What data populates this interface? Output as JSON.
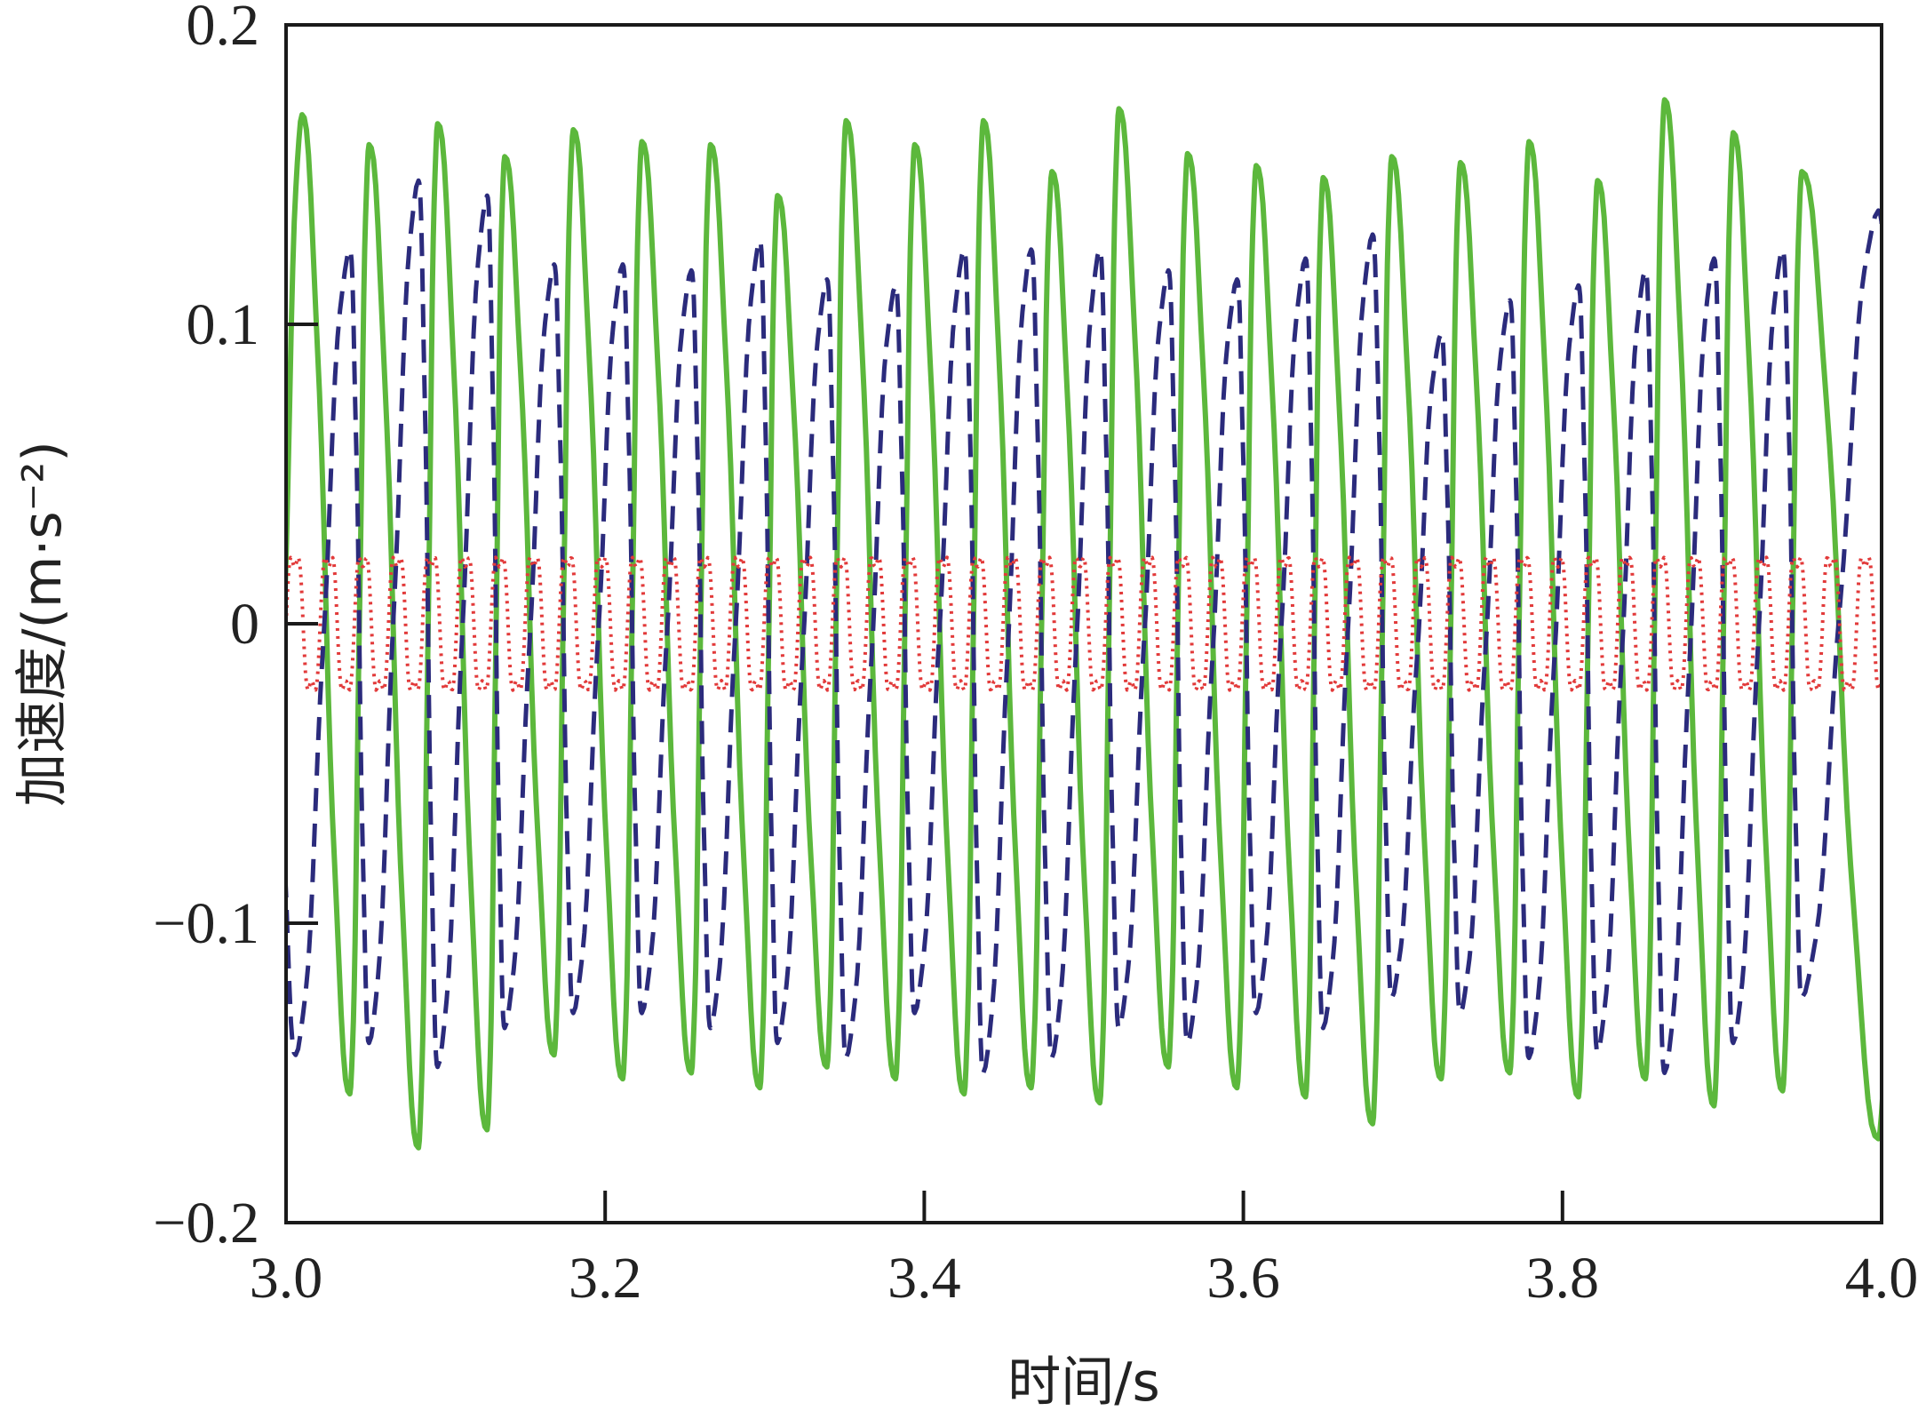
{
  "chart_data": {
    "type": "line",
    "title": "",
    "xlabel": "时间/s",
    "ylabel": "加速度/(m·s⁻²)",
    "xlim": [
      3.0,
      4.0
    ],
    "ylim": [
      -0.2,
      0.2
    ],
    "x_ticks": [
      "3.0",
      "3.2",
      "3.4",
      "3.6",
      "3.8",
      "4.0"
    ],
    "x_tick_values": [
      3.0,
      3.2,
      3.4,
      3.6,
      3.8,
      4.0
    ],
    "y_ticks": [
      "0.2",
      "0.1",
      "0",
      "−0.1",
      "−0.2"
    ],
    "y_tick_values": [
      0.2,
      0.1,
      0,
      -0.1,
      -0.2
    ],
    "grid": false,
    "legend": "none",
    "series": [
      {
        "style": "solid",
        "color": "#5cb83c",
        "peaks_t": [
          3.01,
          3.052,
          3.095,
          3.137,
          3.18,
          3.223,
          3.266,
          3.308,
          3.351,
          3.394,
          3.437,
          3.48,
          3.522,
          3.565,
          3.608,
          3.65,
          3.693,
          3.736,
          3.779,
          3.822,
          3.864,
          3.907,
          3.95
        ],
        "peaks_y": [
          0.17,
          0.16,
          0.167,
          0.156,
          0.165,
          0.161,
          0.16,
          0.143,
          0.168,
          0.16,
          0.168,
          0.151,
          0.172,
          0.157,
          0.153,
          0.149,
          0.156,
          0.154,
          0.161,
          0.148,
          0.175,
          0.164,
          0.151
        ],
        "troughs_t": [
          3.04,
          3.083,
          3.126,
          3.168,
          3.211,
          3.254,
          3.297,
          3.339,
          3.382,
          3.425,
          3.467,
          3.51,
          3.553,
          3.596,
          3.639,
          3.681,
          3.724,
          3.767,
          3.81,
          3.852,
          3.895,
          3.938,
          3.998
        ],
        "troughs_y": [
          -0.157,
          -0.175,
          -0.169,
          -0.144,
          -0.152,
          -0.15,
          -0.155,
          -0.148,
          -0.152,
          -0.157,
          -0.155,
          -0.16,
          -0.148,
          -0.155,
          -0.158,
          -0.167,
          -0.152,
          -0.15,
          -0.158,
          -0.152,
          -0.161,
          -0.156,
          -0.172
        ]
      },
      {
        "style": "dashed",
        "color": "#2b2b7c",
        "peaks_t": [
          3.04,
          3.083,
          3.126,
          3.168,
          3.211,
          3.254,
          3.297,
          3.339,
          3.382,
          3.425,
          3.467,
          3.51,
          3.553,
          3.596,
          3.639,
          3.681,
          3.724,
          3.767,
          3.81,
          3.852,
          3.895,
          3.938,
          3.998
        ],
        "peaks_y": [
          0.125,
          0.148,
          0.143,
          0.12,
          0.12,
          0.118,
          0.128,
          0.115,
          0.113,
          0.125,
          0.125,
          0.125,
          0.118,
          0.115,
          0.122,
          0.13,
          0.097,
          0.108,
          0.113,
          0.118,
          0.122,
          0.125,
          0.138
        ],
        "troughs_t": [
          3.006,
          3.052,
          3.095,
          3.137,
          3.18,
          3.223,
          3.266,
          3.308,
          3.351,
          3.394,
          3.437,
          3.48,
          3.522,
          3.565,
          3.608,
          3.65,
          3.693,
          3.736,
          3.779,
          3.822,
          3.864,
          3.907,
          3.95
        ],
        "troughs_y": [
          -0.144,
          -0.14,
          -0.148,
          -0.135,
          -0.13,
          -0.13,
          -0.135,
          -0.14,
          -0.145,
          -0.13,
          -0.15,
          -0.145,
          -0.135,
          -0.14,
          -0.13,
          -0.135,
          -0.125,
          -0.13,
          -0.145,
          -0.143,
          -0.15,
          -0.14,
          -0.125
        ]
      },
      {
        "style": "dotted",
        "color": "#e23a3a",
        "amplitude": 0.025,
        "period_s": 0.0214
      }
    ]
  }
}
